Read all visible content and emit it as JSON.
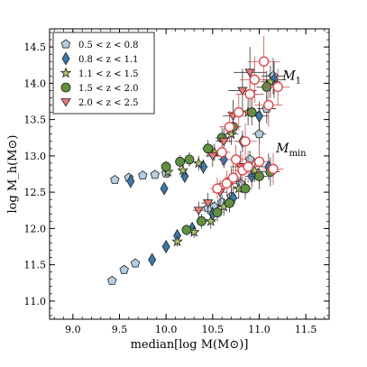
{
  "chart_data": {
    "type": "scatter",
    "xlabel": "median[log M(M⊙)]",
    "ylabel": "log M_h(M⊙)",
    "xlim": [
      8.75,
      11.75
    ],
    "ylim": [
      10.75,
      14.75
    ],
    "xticks": [
      "9.0",
      "9.5",
      "10.0",
      "10.5",
      "11.0",
      "11.5"
    ],
    "yticks": [
      "11.0",
      "11.5",
      "12.0",
      "12.5",
      "13.0",
      "13.5",
      "14.0",
      "14.5"
    ],
    "grid": false,
    "legend_position": "top-left",
    "annotations": [
      {
        "text": "M",
        "sub": "1",
        "x": 11.25,
        "y": 14.05
      },
      {
        "text": "M",
        "sub": "min",
        "x": 11.18,
        "y": 13.05
      }
    ],
    "series": [
      {
        "name": "0.5 < z < 0.8",
        "marker": "pentagon",
        "color": "#b4cde0",
        "points": [
          {
            "x": 9.42,
            "y": 11.28,
            "err": 0.04
          },
          {
            "x": 9.55,
            "y": 11.43,
            "err": 0.04
          },
          {
            "x": 9.67,
            "y": 11.52,
            "err": 0.04
          },
          {
            "x": 9.45,
            "y": 12.67,
            "err": 0.04
          },
          {
            "x": 9.6,
            "y": 12.7,
            "err": 0.05
          },
          {
            "x": 9.75,
            "y": 12.73,
            "err": 0.05
          },
          {
            "x": 9.88,
            "y": 12.74,
            "err": 0.05
          },
          {
            "x": 10.0,
            "y": 12.76,
            "err": 0.06
          },
          {
            "x": 10.45,
            "y": 12.28,
            "err": 0.08
          },
          {
            "x": 10.52,
            "y": 12.3,
            "err": 0.08
          },
          {
            "x": 10.6,
            "y": 12.36,
            "err": 0.1
          },
          {
            "x": 10.7,
            "y": 12.44,
            "err": 0.1
          },
          {
            "x": 10.8,
            "y": 12.62,
            "err": 0.12
          },
          {
            "x": 10.9,
            "y": 12.95,
            "err": 0.12
          },
          {
            "x": 11.0,
            "y": 13.3,
            "err": 0.15
          },
          {
            "x": 11.08,
            "y": 13.65,
            "err": 0.2
          },
          {
            "x": 11.15,
            "y": 14.1,
            "err": 0.25
          }
        ]
      },
      {
        "name": "0.8 < z < 1.1",
        "marker": "diamond",
        "color": "#3c78aa",
        "points": [
          {
            "x": 9.62,
            "y": 12.65,
            "err": 0.06
          },
          {
            "x": 9.85,
            "y": 11.57,
            "err": 0.05
          },
          {
            "x": 9.98,
            "y": 12.55,
            "err": 0.08
          },
          {
            "x": 10.0,
            "y": 11.75,
            "err": 0.06
          },
          {
            "x": 10.12,
            "y": 11.9,
            "err": 0.07
          },
          {
            "x": 10.2,
            "y": 12.72,
            "err": 0.08
          },
          {
            "x": 10.28,
            "y": 12.0,
            "err": 0.08
          },
          {
            "x": 10.4,
            "y": 12.85,
            "err": 0.1
          },
          {
            "x": 10.5,
            "y": 12.2,
            "err": 0.1
          },
          {
            "x": 10.62,
            "y": 12.95,
            "err": 0.12
          },
          {
            "x": 10.72,
            "y": 12.42,
            "err": 0.12
          },
          {
            "x": 10.82,
            "y": 13.2,
            "err": 0.15
          },
          {
            "x": 10.92,
            "y": 12.72,
            "err": 0.15
          },
          {
            "x": 11.0,
            "y": 13.55,
            "err": 0.2
          },
          {
            "x": 11.1,
            "y": 12.85,
            "err": 0.18
          },
          {
            "x": 11.16,
            "y": 14.05,
            "err": 0.25
          }
        ]
      },
      {
        "name": "1.1 < z < 1.5",
        "marker": "star",
        "color": "#a6c46a",
        "points": [
          {
            "x": 10.02,
            "y": 12.78,
            "err": 0.08
          },
          {
            "x": 10.12,
            "y": 11.82,
            "err": 0.07
          },
          {
            "x": 10.18,
            "y": 12.8,
            "err": 0.08
          },
          {
            "x": 10.3,
            "y": 11.95,
            "err": 0.08
          },
          {
            "x": 10.35,
            "y": 12.9,
            "err": 0.1
          },
          {
            "x": 10.48,
            "y": 12.1,
            "err": 0.1
          },
          {
            "x": 10.52,
            "y": 13.05,
            "err": 0.12
          },
          {
            "x": 10.62,
            "y": 12.3,
            "err": 0.12
          },
          {
            "x": 10.7,
            "y": 13.3,
            "err": 0.15
          },
          {
            "x": 10.78,
            "y": 12.55,
            "err": 0.14
          },
          {
            "x": 10.88,
            "y": 13.6,
            "err": 0.18
          },
          {
            "x": 10.95,
            "y": 12.8,
            "err": 0.16
          },
          {
            "x": 11.12,
            "y": 14.02,
            "err": 0.22
          }
        ]
      },
      {
        "name": "1.5 < z < 2.0",
        "marker": "circle",
        "color": "#5f9140",
        "points": [
          {
            "x": 10.0,
            "y": 12.85,
            "err": 0.08
          },
          {
            "x": 10.15,
            "y": 12.92,
            "err": 0.09
          },
          {
            "x": 10.22,
            "y": 11.98,
            "err": 0.08
          },
          {
            "x": 10.25,
            "y": 12.95,
            "err": 0.1
          },
          {
            "x": 10.38,
            "y": 12.1,
            "err": 0.1
          },
          {
            "x": 10.45,
            "y": 13.1,
            "err": 0.12
          },
          {
            "x": 10.55,
            "y": 12.22,
            "err": 0.12
          },
          {
            "x": 10.6,
            "y": 13.25,
            "err": 0.14
          },
          {
            "x": 10.68,
            "y": 12.35,
            "err": 0.13
          },
          {
            "x": 10.72,
            "y": 13.4,
            "err": 0.16
          },
          {
            "x": 10.85,
            "y": 12.55,
            "err": 0.15
          },
          {
            "x": 10.92,
            "y": 13.6,
            "err": 0.18
          },
          {
            "x": 11.0,
            "y": 12.72,
            "err": 0.18
          },
          {
            "x": 11.08,
            "y": 13.95,
            "err": 0.22
          },
          {
            "x": 11.12,
            "y": 12.78,
            "err": 0.2
          }
        ]
      },
      {
        "name": "2.0 < z < 2.5",
        "marker": "triangle-down",
        "color": "#e87878",
        "points": [
          {
            "x": 10.35,
            "y": 12.25,
            "err": 0.12
          },
          {
            "x": 10.45,
            "y": 12.35,
            "err": 0.14
          },
          {
            "x": 10.5,
            "y": 13.0,
            "err": 0.15
          },
          {
            "x": 10.58,
            "y": 12.5,
            "err": 0.16
          },
          {
            "x": 10.62,
            "y": 13.2,
            "err": 0.18
          },
          {
            "x": 10.7,
            "y": 12.65,
            "err": 0.18
          },
          {
            "x": 10.72,
            "y": 13.55,
            "err": 0.22
          },
          {
            "x": 10.8,
            "y": 12.85,
            "err": 0.22
          },
          {
            "x": 10.82,
            "y": 13.9,
            "err": 0.3
          },
          {
            "x": 10.9,
            "y": 14.15,
            "err": 0.35
          }
        ]
      },
      {
        "name": "",
        "marker": "open-circle",
        "color": "#e0474c",
        "points": [
          {
            "x": 10.55,
            "y": 12.55,
            "err": 0.15
          },
          {
            "x": 10.6,
            "y": 13.05,
            "err": 0.18
          },
          {
            "x": 10.65,
            "y": 12.62,
            "err": 0.18
          },
          {
            "x": 10.68,
            "y": 13.4,
            "err": 0.22
          },
          {
            "x": 10.72,
            "y": 12.7,
            "err": 0.2
          },
          {
            "x": 10.75,
            "y": 12.95,
            "err": 0.2
          },
          {
            "x": 10.78,
            "y": 13.6,
            "err": 0.25
          },
          {
            "x": 10.82,
            "y": 12.8,
            "err": 0.22
          },
          {
            "x": 10.85,
            "y": 13.2,
            "err": 0.25
          },
          {
            "x": 10.88,
            "y": 12.85,
            "err": 0.22
          },
          {
            "x": 10.9,
            "y": 13.85,
            "err": 0.3
          },
          {
            "x": 10.95,
            "y": 14.05,
            "err": 0.32
          },
          {
            "x": 11.0,
            "y": 12.92,
            "err": 0.25
          },
          {
            "x": 11.05,
            "y": 14.3,
            "err": 0.35
          },
          {
            "x": 11.1,
            "y": 13.7,
            "err": 0.3
          },
          {
            "x": 11.15,
            "y": 12.82,
            "err": 0.22
          },
          {
            "x": 11.2,
            "y": 13.95,
            "err": 0.25
          }
        ]
      }
    ]
  }
}
